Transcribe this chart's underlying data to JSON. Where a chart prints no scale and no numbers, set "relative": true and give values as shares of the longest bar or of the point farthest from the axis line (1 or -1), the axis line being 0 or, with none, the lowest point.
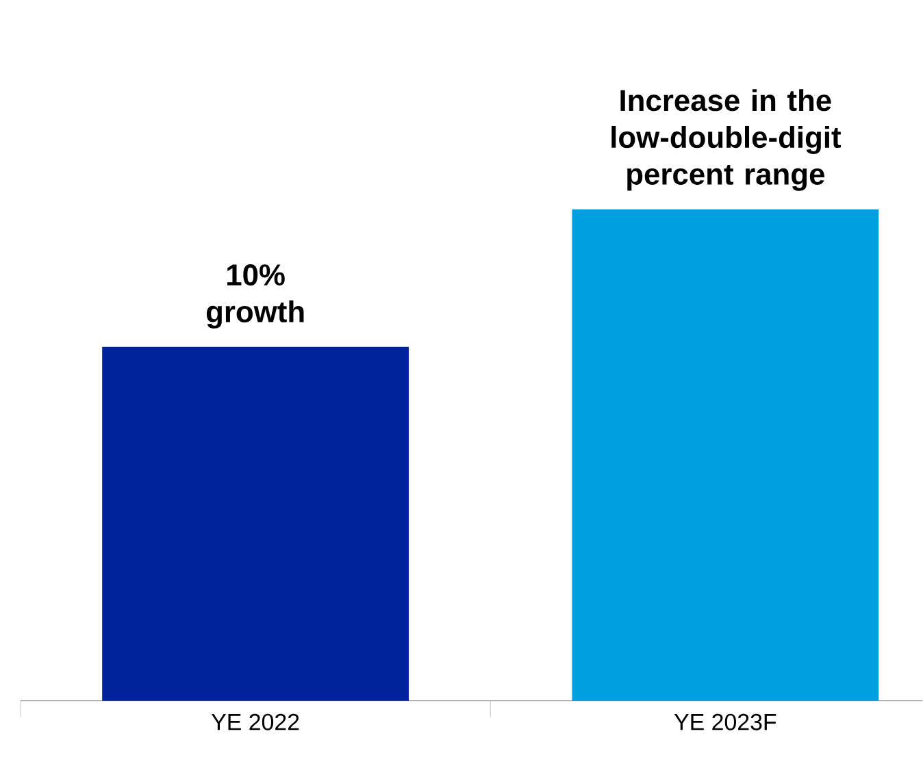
{
  "chart_data": {
    "type": "bar",
    "relative": true,
    "categories": [
      "YE 2022",
      "YE 2023F"
    ],
    "values": [
      0.72,
      1
    ],
    "colors": [
      "#00239c",
      "#009fdf"
    ],
    "annotations": [
      {
        "text": "10% growth",
        "x": "YE 2022",
        "y": 0.72
      },
      {
        "text": "Increase in the low-double-digit percent range",
        "x": "YE 2023F",
        "y": 1
      }
    ]
  }
}
